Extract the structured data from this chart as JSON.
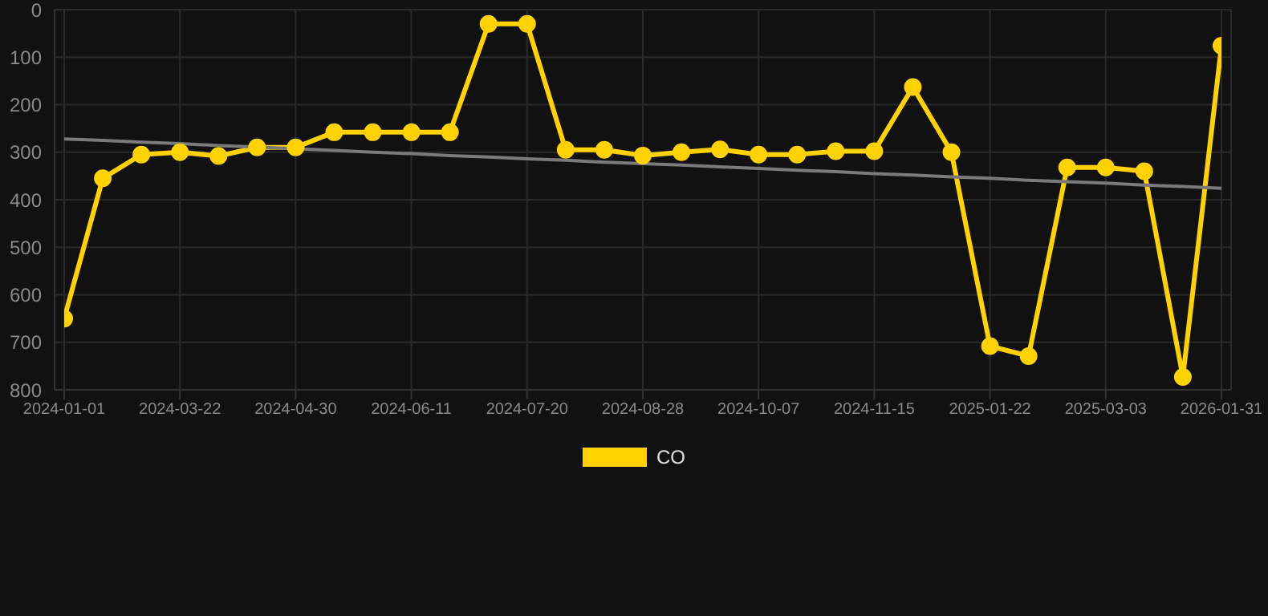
{
  "chart_data": {
    "type": "line",
    "categories": [
      "2024-01-01",
      null,
      null,
      "2024-03-22",
      null,
      null,
      "2024-04-30",
      null,
      null,
      "2024-06-11",
      null,
      null,
      "2024-07-20",
      null,
      null,
      "2024-08-28",
      null,
      null,
      "2024-10-07",
      null,
      null,
      "2024-11-15",
      null,
      null,
      "2025-01-22",
      null,
      null,
      "2025-03-03",
      null,
      null,
      "2026-01-31"
    ],
    "series": [
      {
        "name": "CO",
        "color": "#ffd200",
        "marker": "circle",
        "values": [
          650,
          355,
          305,
          300,
          308,
          290,
          290,
          258,
          258,
          258,
          258,
          30,
          30,
          295,
          295,
          307,
          300,
          294,
          305,
          305,
          298,
          298,
          163,
          300,
          708,
          729,
          332,
          332,
          340,
          773,
          76
        ]
      },
      {
        "type": "line",
        "color": "#7a7a7a",
        "marker": "none",
        "values": [
          272,
          275,
          279,
          282,
          286,
          289,
          293,
          296,
          300,
          303,
          307,
          310,
          314,
          317,
          321,
          324,
          327,
          331,
          334,
          338,
          341,
          345,
          348,
          352,
          355,
          359,
          362,
          365,
          369,
          372,
          376
        ]
      }
    ],
    "ylim": [
      800,
      0
    ],
    "yticks": [
      0,
      100,
      200,
      300,
      400,
      500,
      600,
      700,
      800
    ],
    "grid": true,
    "legend": "bottom"
  }
}
